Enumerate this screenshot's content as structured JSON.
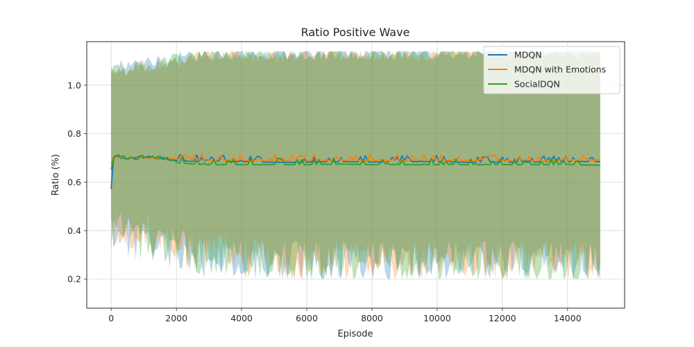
{
  "chart_data": {
    "type": "line",
    "title": "Ratio Positive Wave",
    "xlabel": "Episode",
    "ylabel": "Ratio (%)",
    "xlim": [
      -750,
      15750
    ],
    "ylim": [
      0.08,
      1.18
    ],
    "x_ticks": [
      0,
      2000,
      4000,
      6000,
      8000,
      10000,
      12000,
      14000
    ],
    "y_ticks": [
      0.2,
      0.4,
      0.6,
      0.8,
      1.0
    ],
    "y_tick_labels": [
      "0.2",
      "0.4",
      "0.6",
      "0.8",
      "1.0"
    ],
    "grid": true,
    "legend_position": "top-right",
    "band_clip": [
      0.2,
      1.14
    ],
    "series": [
      {
        "name": "MDQN",
        "color": "#1f77b4",
        "band_opacity": 0.3,
        "points": [
          [
            0,
            0.575
          ],
          [
            50,
            0.7
          ],
          [
            150,
            0.705
          ],
          [
            300,
            0.7
          ],
          [
            500,
            0.7
          ],
          [
            700,
            0.7
          ],
          [
            1000,
            0.705
          ],
          [
            1300,
            0.7
          ],
          [
            1600,
            0.7
          ],
          [
            2000,
            0.69
          ],
          [
            2500,
            0.685
          ],
          [
            3000,
            0.69
          ],
          [
            3500,
            0.685
          ],
          [
            4000,
            0.685
          ],
          [
            5000,
            0.682
          ],
          [
            6000,
            0.682
          ],
          [
            7000,
            0.685
          ],
          [
            8000,
            0.683
          ],
          [
            9000,
            0.685
          ],
          [
            10000,
            0.685
          ],
          [
            11000,
            0.682
          ],
          [
            12000,
            0.682
          ],
          [
            13000,
            0.683
          ],
          [
            14000,
            0.685
          ],
          [
            15000,
            0.685
          ]
        ],
        "upper": [
          [
            0,
            1.07
          ],
          [
            500,
            1.08
          ],
          [
            1000,
            1.09
          ],
          [
            2000,
            1.11
          ],
          [
            3000,
            1.13
          ],
          [
            15000,
            1.14
          ]
        ],
        "lower": [
          [
            0,
            0.33
          ],
          [
            500,
            0.32
          ],
          [
            1000,
            0.3
          ],
          [
            2000,
            0.27
          ],
          [
            3000,
            0.23
          ],
          [
            5000,
            0.22
          ],
          [
            15000,
            0.21
          ]
        ]
      },
      {
        "name": "MDQN with Emotions",
        "color": "#ff7f0e",
        "band_opacity": 0.3,
        "points": [
          [
            0,
            0.68
          ],
          [
            50,
            0.7
          ],
          [
            150,
            0.7
          ],
          [
            300,
            0.705
          ],
          [
            500,
            0.7
          ],
          [
            700,
            0.705
          ],
          [
            1000,
            0.705
          ],
          [
            1300,
            0.7
          ],
          [
            1600,
            0.695
          ],
          [
            2000,
            0.695
          ],
          [
            2500,
            0.69
          ],
          [
            3000,
            0.69
          ],
          [
            3500,
            0.69
          ],
          [
            4000,
            0.69
          ],
          [
            5000,
            0.688
          ],
          [
            6000,
            0.69
          ],
          [
            7000,
            0.69
          ],
          [
            8000,
            0.69
          ],
          [
            9000,
            0.688
          ],
          [
            10000,
            0.69
          ],
          [
            11000,
            0.69
          ],
          [
            12000,
            0.69
          ],
          [
            13000,
            0.688
          ],
          [
            14000,
            0.69
          ],
          [
            15000,
            0.69
          ]
        ],
        "upper": [
          [
            0,
            1.04
          ],
          [
            500,
            1.06
          ],
          [
            1000,
            1.08
          ],
          [
            2000,
            1.1
          ],
          [
            3000,
            1.12
          ],
          [
            15000,
            1.14
          ]
        ],
        "lower": [
          [
            0,
            0.35
          ],
          [
            500,
            0.34
          ],
          [
            1000,
            0.33
          ],
          [
            2000,
            0.29
          ],
          [
            3000,
            0.25
          ],
          [
            5000,
            0.23
          ],
          [
            15000,
            0.22
          ]
        ]
      },
      {
        "name": "SocialDQN",
        "color": "#2ca02c",
        "band_opacity": 0.3,
        "points": [
          [
            0,
            0.65
          ],
          [
            50,
            0.71
          ],
          [
            150,
            0.705
          ],
          [
            300,
            0.71
          ],
          [
            500,
            0.7
          ],
          [
            700,
            0.705
          ],
          [
            1000,
            0.705
          ],
          [
            1300,
            0.7
          ],
          [
            1600,
            0.7
          ],
          [
            2000,
            0.68
          ],
          [
            2500,
            0.675
          ],
          [
            3000,
            0.672
          ],
          [
            3500,
            0.672
          ],
          [
            4000,
            0.672
          ],
          [
            5000,
            0.672
          ],
          [
            6000,
            0.672
          ],
          [
            7000,
            0.675
          ],
          [
            8000,
            0.672
          ],
          [
            9000,
            0.672
          ],
          [
            10000,
            0.672
          ],
          [
            11000,
            0.672
          ],
          [
            12000,
            0.672
          ],
          [
            13000,
            0.672
          ],
          [
            14000,
            0.672
          ],
          [
            15000,
            0.67
          ]
        ],
        "upper": [
          [
            0,
            1.06
          ],
          [
            500,
            1.07
          ],
          [
            1000,
            1.08
          ],
          [
            2000,
            1.11
          ],
          [
            3000,
            1.13
          ],
          [
            15000,
            1.14
          ]
        ],
        "lower": [
          [
            0,
            0.34
          ],
          [
            500,
            0.33
          ],
          [
            1000,
            0.31
          ],
          [
            2000,
            0.28
          ],
          [
            3000,
            0.24
          ],
          [
            5000,
            0.22
          ],
          [
            15000,
            0.21
          ]
        ]
      }
    ],
    "noise_amplitude": 0.015
  }
}
